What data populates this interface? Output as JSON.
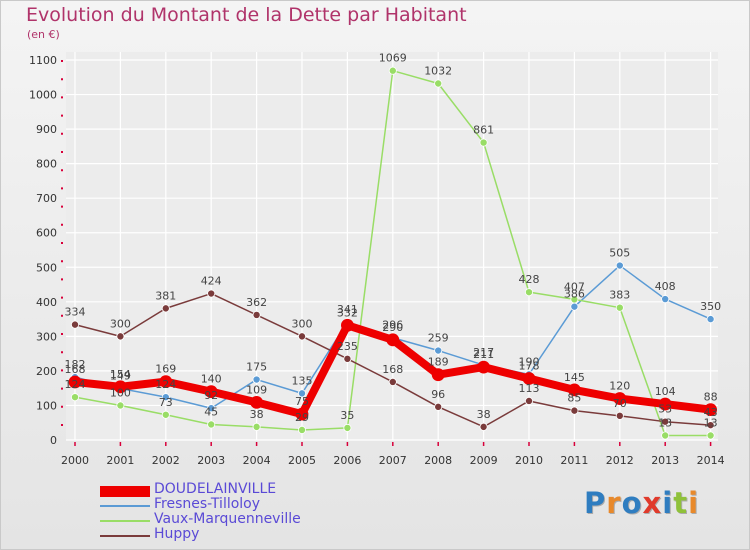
{
  "title": "Evolution du Montant de la Dette par Habitant",
  "subtitle": "(en €)",
  "logo": {
    "text": "Proxiti",
    "letter_colors": [
      "#2f7dc0",
      "#e8892b",
      "#2f7dc0",
      "#e03a2b",
      "#2f7dc0",
      "#8fc13a",
      "#e8892b"
    ]
  },
  "colors": {
    "text": "#b0336a",
    "title": "#b0336a",
    "grid": "#ffffff",
    "axis_tick": "#d8003a"
  },
  "chart_data": {
    "type": "line",
    "title": "Evolution du Montant de la Dette par Habitant",
    "ylabel": "(en €)",
    "xlabel": "",
    "ylim": [
      0,
      1100
    ],
    "yticks": [
      0,
      100,
      200,
      300,
      400,
      500,
      600,
      700,
      800,
      900,
      1000,
      1100
    ],
    "x": [
      "2000",
      "2001",
      "2002",
      "2003",
      "2004",
      "2005",
      "2006",
      "2007",
      "2008",
      "2009",
      "2010",
      "2011",
      "2012",
      "2013",
      "2014"
    ],
    "grid": true,
    "legend_position": "bottom-left",
    "series": [
      {
        "name": "DOUDELAINVILLE",
        "color": "#ee0000",
        "label_color": "#444444",
        "width": 8,
        "values": [
          168,
          154,
          169,
          140,
          109,
          75,
          332,
          290,
          189,
          211,
          178,
          145,
          120,
          104,
          88
        ],
        "labels": [
          "168",
          "154",
          "169",
          "140",
          "109",
          "75",
          "332",
          "290",
          "189",
          "211",
          "178",
          "145",
          "120",
          "104",
          "88"
        ]
      },
      {
        "name": "Fresnes-Tilloloy",
        "color": "#5b9bd5",
        "label_color": "#444444",
        "width": 1.5,
        "values": [
          182,
          149,
          124,
          92,
          175,
          135,
          341,
          296,
          259,
          217,
          190,
          386,
          505,
          408,
          350
        ],
        "labels": [
          "182",
          "149",
          "124",
          "92",
          "175",
          "135",
          "341",
          "296",
          "259",
          "217",
          "190",
          "386",
          "505",
          "408",
          "350"
        ]
      },
      {
        "name": "Vaux-Marquenneville",
        "color": "#99dd66",
        "label_color": "#444444",
        "width": 1.5,
        "values": [
          124,
          100,
          73,
          45,
          38,
          29,
          35,
          1069,
          1032,
          861,
          428,
          407,
          383,
          13,
          13
        ],
        "labels": [
          "124",
          "100",
          "73",
          "45",
          "38",
          "29",
          "35",
          "1069",
          "1032",
          "861",
          "428",
          "407",
          "383",
          "13",
          "13"
        ]
      },
      {
        "name": "Huppy",
        "color": "#7a3b3b",
        "label_color": "#444444",
        "width": 1.5,
        "values": [
          334,
          300,
          381,
          424,
          362,
          300,
          235,
          168,
          96,
          38,
          113,
          85,
          70,
          53,
          43
        ],
        "labels": [
          "334",
          "300",
          "381",
          "424",
          "362",
          "300",
          "235",
          "168",
          "96",
          "38",
          "113",
          "85",
          "70",
          "53",
          "43"
        ]
      }
    ]
  }
}
